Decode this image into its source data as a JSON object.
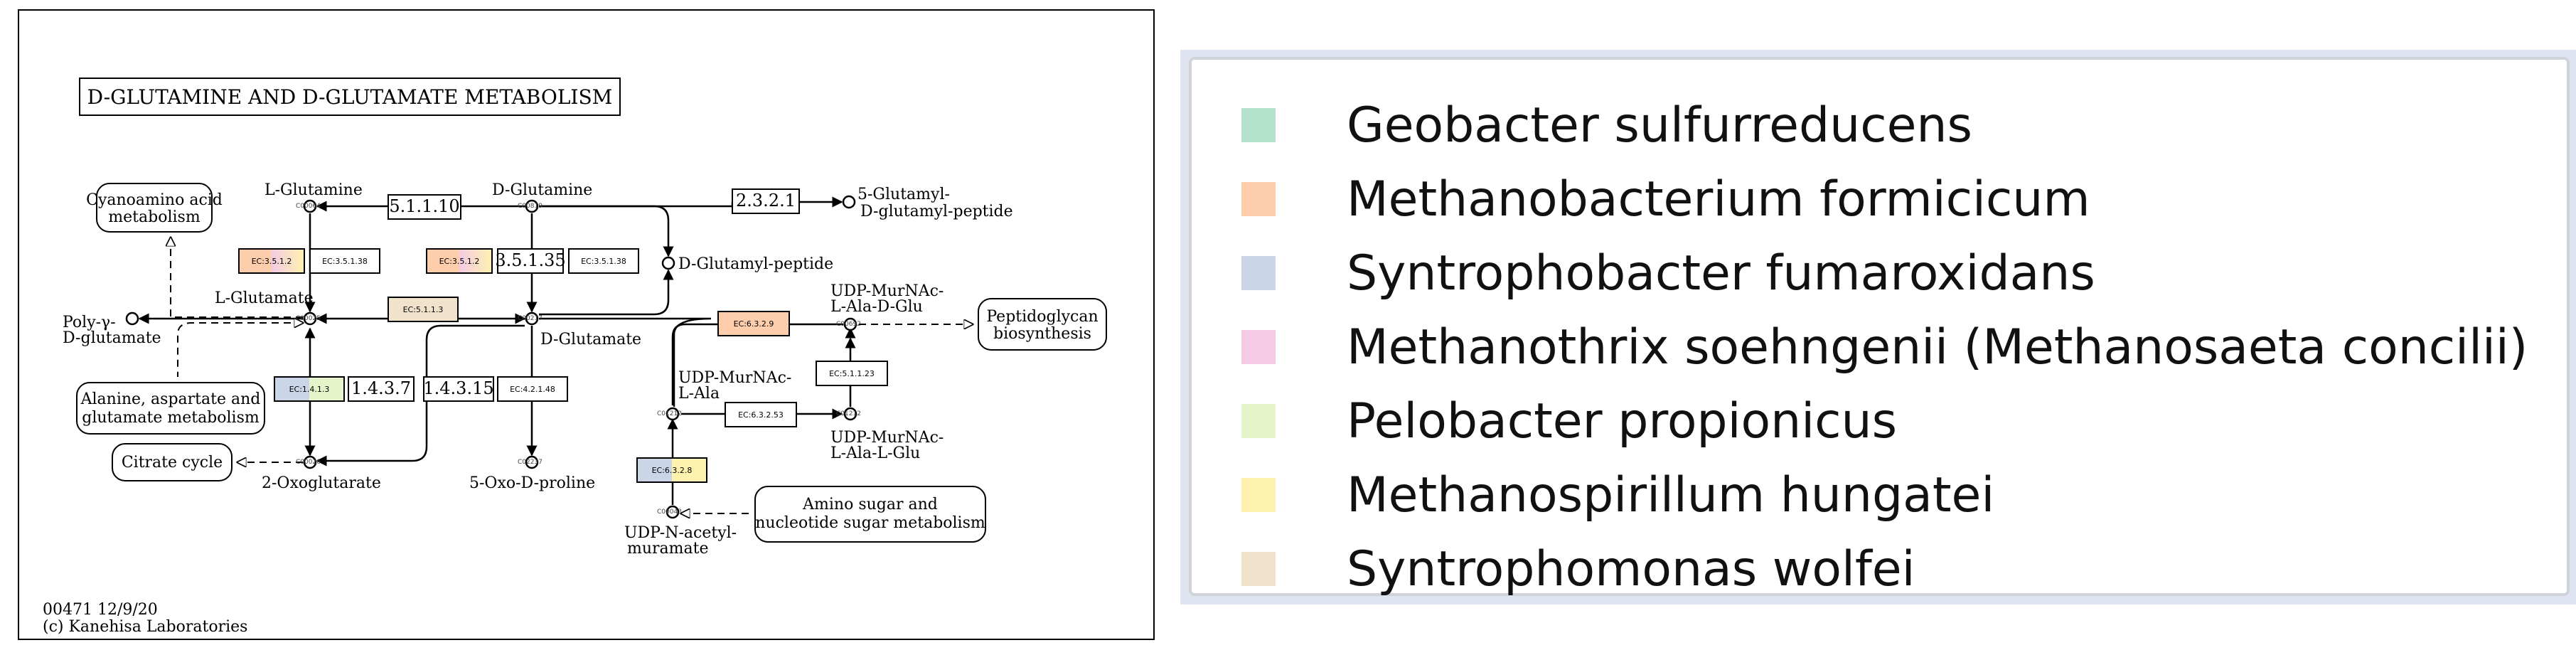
{
  "pathway": {
    "title": "D-GLUTAMINE AND D-GLUTAMATE METABOLISM",
    "footer_id": "00471 12/9/20",
    "footer_copy": "(c) Kanehisa Laboratories",
    "compounds": {
      "l_glutamine": "L-Glutamine",
      "d_glutamine": "D-Glutamine",
      "l_glutamate": "L-Glutamate",
      "d_glutamate": "D-Glutamate",
      "poly_glutamate_1": "Poly-γ-",
      "poly_glutamate_2": "D-glutamate",
      "oxoglutarate": "2-Oxoglutarate",
      "oxoproline": "5-Oxo-D-proline",
      "glutamyl_peptide_1": "5-Glutamyl-",
      "glutamyl_peptide_2": "D-glutamyl-peptide",
      "d_glutamyl_peptide": "D-Glutamyl-peptide",
      "udp_ala_dglu_1": "UDP-MurNAc-",
      "udp_ala_dglu_2": "L-Ala-D-Glu",
      "udp_ala_1": "UDP-MurNAc-",
      "udp_ala_2": "L-Ala",
      "udp_ala_lglu_1": "UDP-MurNAc-",
      "udp_ala_lglu_2": "L-Ala-L-Glu",
      "udp_acetyl_1": "UDP-N-acetyl-",
      "udp_acetyl_2": "muramate"
    },
    "maps": {
      "cyanoamino_1": "Cyanoamino acid",
      "cyanoamino_2": "metabolism",
      "alanine_1": "Alanine, aspartate and",
      "alanine_2": "glutamate metabolism",
      "citrate": "Citrate cycle",
      "peptidoglycan_1": "Peptidoglycan",
      "peptidoglycan_2": "biosynthesis",
      "amino_sugar_1": "Amino sugar and",
      "amino_sugar_2": "nucleotide sugar metabolism"
    },
    "enzymes": {
      "e5_1_1_10": "5.1.1.10",
      "e2_3_2_1": "2.3.2.1",
      "e3_5_1_2_a": "EC:3.5.1.2",
      "e3_5_1_38_a": "EC:3.5.1.38",
      "e3_5_1_2_b": "EC:3.5.1.2",
      "e3_5_1_35": "3.5.1.35",
      "e3_5_1_38_b": "EC:3.5.1.38",
      "e5_1_1_3": "EC:5.1.1.3",
      "e6_3_2_9": "EC:6.3.2.9",
      "e5_1_1_23": "EC:5.1.1.23",
      "e1_4_1_3": "EC:1.4.1.3",
      "e1_4_3_7": "1.4.3.7",
      "e1_4_3_15": "1.4.3.15",
      "e4_2_1_48": "EC:4.2.1.48",
      "e6_3_2_53": "EC:6.3.2.53",
      "e6_3_2_8": "EC:6.3.2.8"
    },
    "node_codes": {
      "c1": "C00064",
      "c2": "C00819",
      "c3": "C00025",
      "c4": "C00217",
      "c5": "C00026",
      "c6": "C02237",
      "c7": "C00692",
      "c8": "C01212",
      "c9": "C01212",
      "c10": "C00043"
    }
  },
  "legend": {
    "items": [
      {
        "label": "Geobacter sulfurreducens",
        "color": "#b3e2cd"
      },
      {
        "label": "Methanobacterium formicicum",
        "color": "#fdcdac"
      },
      {
        "label": "Syntrophobacter fumaroxidans",
        "color": "#cbd5e8"
      },
      {
        "label": "Methanothrix soehngenii (Methanosaeta concilii)",
        "color": "#f4cae4"
      },
      {
        "label": "Pelobacter propionicus",
        "color": "#e6f5c9"
      },
      {
        "label": "Methanospirillum hungatei",
        "color": "#fff2ae"
      },
      {
        "label": "Syntrophomonas wolfei",
        "color": "#f1e2cc"
      }
    ]
  }
}
